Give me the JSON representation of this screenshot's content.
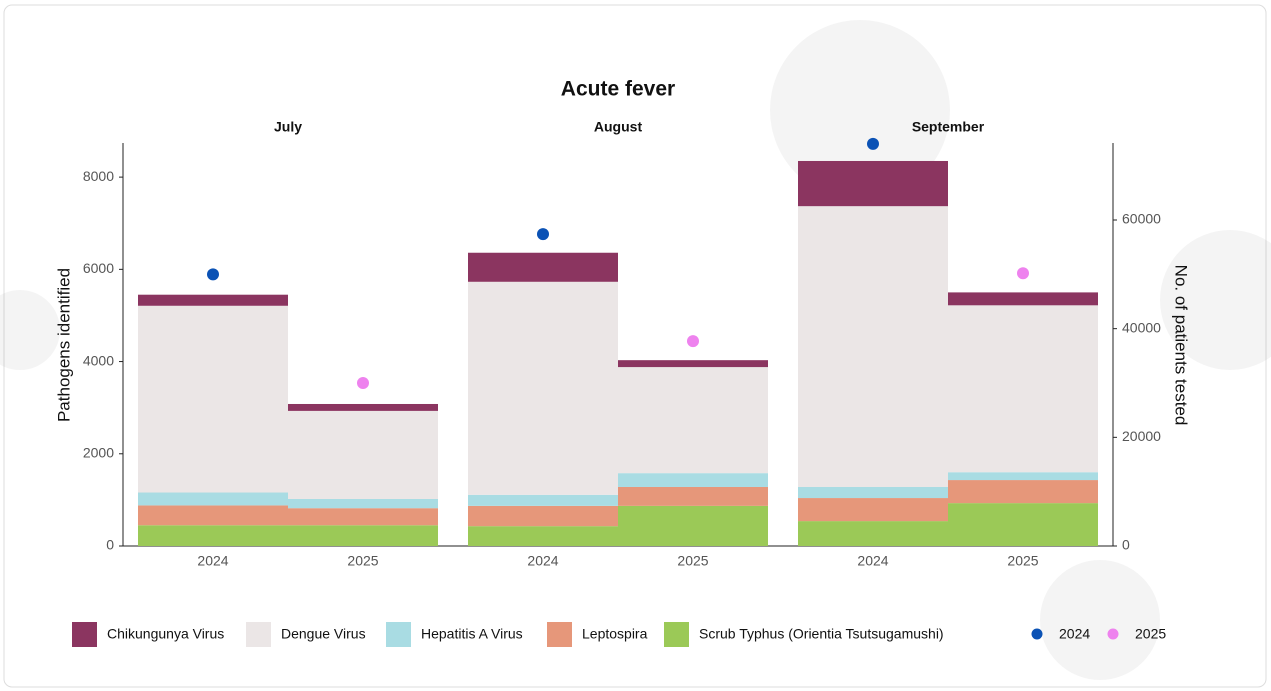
{
  "chart_data": {
    "type": "stacked-bar",
    "title": "Acute fever",
    "facets": [
      "July",
      "August",
      "September"
    ],
    "categories": [
      "2024",
      "2025",
      "2024",
      "2025",
      "2024",
      "2025"
    ],
    "y_label": "Pathogens identified",
    "y2_label": "No. of patients tested",
    "ylim": [
      0,
      8740
    ],
    "yticks": [
      0,
      2000,
      4000,
      6000,
      8000
    ],
    "y2lim": [
      0,
      74170
    ],
    "y2ticks": [
      0,
      20000,
      40000,
      60000
    ],
    "series": [
      {
        "name": "Scrub Typhus (Orientia Tsutsugamushi)",
        "color": "#9bc957",
        "values": [
          450,
          450,
          430,
          870,
          540,
          930
        ]
      },
      {
        "name": "Leptospira",
        "color": "#e6977a",
        "values": [
          430,
          370,
          440,
          410,
          500,
          500
        ]
      },
      {
        "name": "Hepatitis A Virus",
        "color": "#a9dce3",
        "values": [
          280,
          200,
          240,
          300,
          240,
          170
        ]
      },
      {
        "name": "Dengue Virus",
        "color": "#ebe6e6",
        "values": [
          4050,
          1910,
          4620,
          2300,
          6090,
          3620
        ]
      },
      {
        "name": "Chikungunya Virus",
        "color": "#8b3560",
        "values": [
          240,
          150,
          630,
          150,
          980,
          280
        ]
      }
    ],
    "points": [
      {
        "name": "2024",
        "color": "#0b52b5",
        "axis": "y2",
        "values": [
          50000,
          null,
          57400,
          null,
          74000,
          null
        ]
      },
      {
        "name": "2025",
        "color": "#ee82ee",
        "axis": "y2",
        "values": [
          null,
          30000,
          null,
          37700,
          null,
          50200
        ]
      }
    ]
  }
}
